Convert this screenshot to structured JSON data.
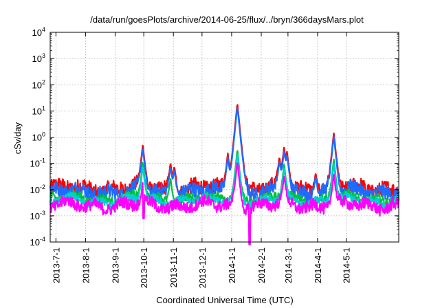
{
  "chart_data": {
    "type": "line",
    "title": "/data/run/goesPlots/archive/2014-06-25/flux/../bryn/366daysMars.plot",
    "xlabel": "Coordinated Universal Time (UTC)",
    "ylabel": "cSv/day",
    "yscale": "log",
    "ylim": [
      0.0001,
      10000
    ],
    "xlim": [
      "2013-06-25",
      "2014-06-25"
    ],
    "grid": true,
    "y_ticks": [
      {
        "base": "10",
        "exp": "-4"
      },
      {
        "base": "10",
        "exp": "-3"
      },
      {
        "base": "10",
        "exp": "-2"
      },
      {
        "base": "10",
        "exp": "-1"
      },
      {
        "base": "10",
        "exp": "0"
      },
      {
        "base": "10",
        "exp": "1"
      },
      {
        "base": "10",
        "exp": "2"
      },
      {
        "base": "10",
        "exp": "3"
      },
      {
        "base": "10",
        "exp": "4"
      }
    ],
    "x_ticks": [
      {
        "date": "2013-07-01",
        "label": "2013-7-1"
      },
      {
        "date": "2013-08-01",
        "label": "2013-8-1"
      },
      {
        "date": "2013-09-01",
        "label": "2013-9-1"
      },
      {
        "date": "2013-10-01",
        "label": "2013-10-1"
      },
      {
        "date": "2013-11-01",
        "label": "2013-11-1"
      },
      {
        "date": "2013-12-01",
        "label": "2013-12-1"
      },
      {
        "date": "2014-01-01",
        "label": "2014-1-1"
      },
      {
        "date": "2014-02-01",
        "label": "2014-2-1"
      },
      {
        "date": "2014-03-01",
        "label": "2014-3-1"
      },
      {
        "date": "2014-04-01",
        "label": "2014-4-1"
      },
      {
        "date": "2014-05-01",
        "label": "2014-5-1"
      }
    ],
    "series": [
      {
        "color": "#ff0000",
        "base": 0.011,
        "scale": 2.0,
        "peaks": [
          {
            "date": "2013-09-30",
            "value": 0.55
          },
          {
            "date": "2013-10-29",
            "value": 0.11
          },
          {
            "date": "2013-11-02",
            "value": 0.08
          },
          {
            "date": "2013-12-28",
            "value": 0.25
          },
          {
            "date": "2014-01-07",
            "value": 20
          },
          {
            "date": "2014-02-20",
            "value": 0.18
          },
          {
            "date": "2014-02-25",
            "value": 0.45
          },
          {
            "date": "2014-02-28",
            "value": 0.3
          },
          {
            "date": "2014-03-30",
            "value": 0.045
          },
          {
            "date": "2014-04-18",
            "value": 1.5
          }
        ]
      },
      {
        "color": "#1e6cff",
        "base": 0.0085,
        "scale": 1.9,
        "peaks": [
          {
            "date": "2013-09-30",
            "value": 0.4
          },
          {
            "date": "2013-10-29",
            "value": 0.08
          },
          {
            "date": "2013-11-02",
            "value": 0.06
          },
          {
            "date": "2013-12-28",
            "value": 0.18
          },
          {
            "date": "2014-01-07",
            "value": 15
          },
          {
            "date": "2014-02-20",
            "value": 0.13
          },
          {
            "date": "2014-02-25",
            "value": 0.33
          },
          {
            "date": "2014-02-28",
            "value": 0.22
          },
          {
            "date": "2014-03-30",
            "value": 0.035
          },
          {
            "date": "2014-04-18",
            "value": 1.1
          }
        ]
      },
      {
        "color": "#00c040",
        "base": 0.0045,
        "scale": 1.5,
        "peaks": [
          {
            "date": "2013-09-30",
            "value": 0.12
          },
          {
            "date": "2013-10-29",
            "value": 0.03
          },
          {
            "date": "2014-01-07",
            "value": 0.35
          },
          {
            "date": "2014-02-25",
            "value": 0.1
          },
          {
            "date": "2014-04-18",
            "value": 0.15
          }
        ]
      },
      {
        "color": "#00d0d0",
        "base": 0.0038,
        "scale": 1.4,
        "peaks": [
          {
            "date": "2013-09-30",
            "value": 0.08
          },
          {
            "date": "2014-01-07",
            "value": 0.25
          },
          {
            "date": "2014-02-25",
            "value": 0.07
          },
          {
            "date": "2014-04-18",
            "value": 0.1
          }
        ]
      },
      {
        "color": "#ff00ff",
        "base": 0.0025,
        "scale": 1.7,
        "peaks": [
          {
            "date": "2013-09-30",
            "value": 0.02
          },
          {
            "date": "2014-01-07",
            "value": 0.12
          },
          {
            "date": "2014-02-25",
            "value": 0.035
          },
          {
            "date": "2014-04-18",
            "value": 0.04
          }
        ],
        "dips": [
          {
            "date": "2014-01-20",
            "value": 8e-05
          },
          {
            "date": "2013-10-01",
            "value": 0.0008
          }
        ]
      }
    ]
  }
}
